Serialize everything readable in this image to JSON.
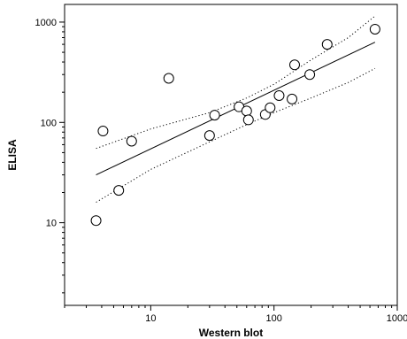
{
  "chart_data": {
    "type": "scatter",
    "xlabel": "Western blot",
    "ylabel": "ELISA",
    "x_scale": "log",
    "y_scale": "log",
    "xlim": [
      2,
      1000
    ],
    "ylim": [
      1.5,
      1500
    ],
    "x_ticks": [
      {
        "value": 10,
        "label": "10"
      },
      {
        "value": 100,
        "label": "100"
      },
      {
        "value": 1000,
        "label": "1000"
      }
    ],
    "y_ticks": [
      {
        "value": 10,
        "label": "10"
      },
      {
        "value": 100,
        "label": "100"
      },
      {
        "value": 1000,
        "label": "1000"
      }
    ],
    "grid": false,
    "legend": "none",
    "points": [
      {
        "x": 3.6,
        "y": 10.5
      },
      {
        "x": 4.1,
        "y": 82
      },
      {
        "x": 5.5,
        "y": 21
      },
      {
        "x": 7,
        "y": 65
      },
      {
        "x": 14,
        "y": 275
      },
      {
        "x": 30,
        "y": 74
      },
      {
        "x": 33,
        "y": 118
      },
      {
        "x": 52,
        "y": 143
      },
      {
        "x": 60,
        "y": 130
      },
      {
        "x": 62,
        "y": 106
      },
      {
        "x": 85,
        "y": 120
      },
      {
        "x": 93,
        "y": 140
      },
      {
        "x": 110,
        "y": 185
      },
      {
        "x": 140,
        "y": 171
      },
      {
        "x": 147,
        "y": 375
      },
      {
        "x": 195,
        "y": 300
      },
      {
        "x": 270,
        "y": 600
      },
      {
        "x": 660,
        "y": 850
      }
    ],
    "fit_line": [
      {
        "x": 3.6,
        "y": 30
      },
      {
        "x": 660,
        "y": 630
      }
    ],
    "ci_upper": [
      {
        "x": 3.6,
        "y": 55
      },
      {
        "x": 10,
        "y": 86
      },
      {
        "x": 30,
        "y": 125
      },
      {
        "x": 60,
        "y": 175
      },
      {
        "x": 100,
        "y": 240
      },
      {
        "x": 200,
        "y": 420
      },
      {
        "x": 400,
        "y": 700
      },
      {
        "x": 660,
        "y": 1150
      }
    ],
    "ci_lower": [
      {
        "x": 3.6,
        "y": 16
      },
      {
        "x": 10,
        "y": 34
      },
      {
        "x": 30,
        "y": 64
      },
      {
        "x": 60,
        "y": 95
      },
      {
        "x": 100,
        "y": 125
      },
      {
        "x": 200,
        "y": 175
      },
      {
        "x": 400,
        "y": 250
      },
      {
        "x": 660,
        "y": 345
      }
    ],
    "colors": {
      "line": "#000000",
      "marker_fill": "#ffffff",
      "marker_stroke": "#000000"
    }
  }
}
